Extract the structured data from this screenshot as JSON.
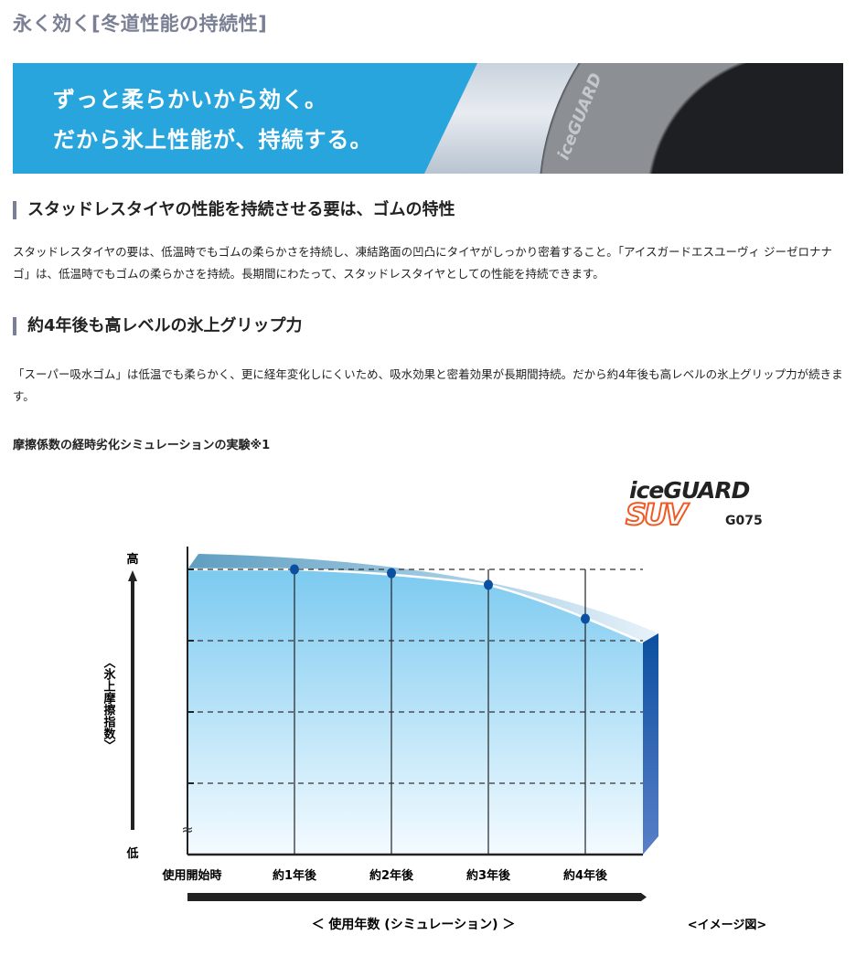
{
  "page_title": "永く効く[冬道性能の持続性]",
  "hero": {
    "line1": "ずっと柔らかいから効く。",
    "line2": "だから氷上性能が、持続する。",
    "tire_brand_text": "iceGUARD"
  },
  "section1": {
    "heading": "スタッドレスタイヤの性能を持続させる要は、ゴムの特性",
    "body": "スタッドレスタイヤの要は、低温時でもゴムの柔らかさを持続し、凍結路面の凹凸にタイヤがしっかり密着すること。「アイスガードエスユーヴィ ジーゼロナナゴ」は、低温時でもゴムの柔らかさを持続。長期間にわたって、スタッドレスタイヤとしての性能を持続できます。"
  },
  "section2": {
    "heading": "約4年後も高レベルの氷上グリップ力",
    "body": "「スーパー吸水ゴム」は低温でも柔らかく、更に経年変化しにくいため、吸水効果と密着効果が長期間持続。だから約4年後も高レベルの氷上グリップ力が続きます。"
  },
  "chart_heading": "摩擦係数の経時劣化シミュレーションの実験※1",
  "logo": {
    "line1": "iceGUARD",
    "line2": "SUV",
    "model": "G075"
  },
  "chart_data": {
    "type": "area",
    "title": "",
    "ylabel": "〈氷上摩擦指数〉",
    "y_high_label": "高",
    "y_low_label": "低",
    "xlabel": "＜ 使用年数 (シミュレーション) ＞",
    "note": "<イメージ図>",
    "categories": [
      "使用開始時",
      "約1年後",
      "約2年後",
      "約3年後",
      "約4年後"
    ],
    "values": [
      100,
      100,
      98.7,
      94.6,
      82.7
    ],
    "ylim": [
      0,
      100
    ],
    "y_axis_broken": true,
    "gridlines": [
      25,
      50,
      75,
      100
    ],
    "grid": true,
    "colors": {
      "fill_top": "#7ccaf0",
      "fill_bottom": "#f4fbff",
      "marker": "#0b4fa0",
      "side": "#1f56a8"
    }
  }
}
